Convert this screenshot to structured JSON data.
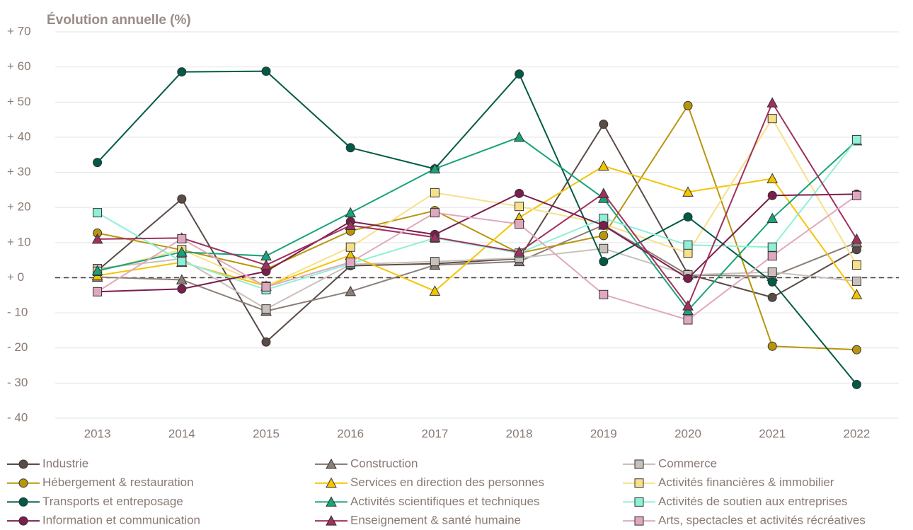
{
  "chart_data": {
    "type": "line",
    "title": "Évolution annuelle (%)",
    "categories": [
      "2013",
      "2014",
      "2015",
      "2016",
      "2017",
      "2018",
      "2019",
      "2020",
      "2021",
      "2022"
    ],
    "ylim": [
      -40,
      70
    ],
    "yticks": [
      {
        "value": -40,
        "label": "- 40"
      },
      {
        "value": -30,
        "label": "- 30"
      },
      {
        "value": -20,
        "label": "- 20"
      },
      {
        "value": -10,
        "label": "- 10"
      },
      {
        "value": 0,
        "label": "+ 0"
      },
      {
        "value": 10,
        "label": "+ 10"
      },
      {
        "value": 20,
        "label": "+ 20"
      },
      {
        "value": 30,
        "label": "+ 30"
      },
      {
        "value": 40,
        "label": "+ 40"
      },
      {
        "value": 50,
        "label": "+ 50"
      },
      {
        "value": 60,
        "label": "+ 60"
      },
      {
        "value": 70,
        "label": "+ 70"
      }
    ],
    "grid": true,
    "zero_line": true,
    "legend": "bottom",
    "series": [
      {
        "name": "Industrie",
        "color": "#5b4b46",
        "marker": "circle",
        "values": [
          2,
          22.4,
          -18.3,
          3.4,
          4,
          5.4,
          43.7,
          1,
          -5.6,
          8
        ]
      },
      {
        "name": "Construction",
        "color": "#8c7f78",
        "marker": "triangle",
        "values": [
          0.2,
          -0.6,
          -9.5,
          -3.9,
          3.6,
          4.6,
          15,
          0.8,
          0.4,
          10
        ]
      },
      {
        "name": "Commerce",
        "color": "#c9c0bb",
        "marker": "square",
        "values": [
          2.6,
          5.4,
          -8.9,
          3.8,
          4.6,
          5.6,
          8.3,
          0.8,
          1.6,
          -1
        ]
      },
      {
        "name": "Hébergement & restauration",
        "color": "#b8960c",
        "marker": "circle",
        "values": [
          12.7,
          7.9,
          2.4,
          13.3,
          19.1,
          7,
          12,
          49,
          -19.5,
          -20.5
        ]
      },
      {
        "name": "Services en direction des personnes",
        "color": "#f5c400",
        "marker": "triangle",
        "values": [
          0.6,
          4.4,
          -2.4,
          6.4,
          -3.8,
          17.1,
          31.8,
          24.4,
          28.2,
          -4.8
        ]
      },
      {
        "name": "Activités financières & immobilier",
        "color": "#f7e08a",
        "marker": "square",
        "values": [
          1.8,
          8,
          -2.4,
          8.7,
          24.2,
          20.3,
          15.3,
          7,
          45.3,
          3.6
        ]
      },
      {
        "name": "Transports et entreposage",
        "color": "#005a46",
        "marker": "circle",
        "values": [
          32.8,
          58.6,
          58.8,
          37,
          31,
          58,
          4.6,
          17.3,
          -1.2,
          -30.4
        ]
      },
      {
        "name": "Activités scientifiques et techniques",
        "color": "#1aa37a",
        "marker": "triangle",
        "values": [
          2,
          7.3,
          6.2,
          18.5,
          31,
          40,
          22.6,
          -9.3,
          16.9,
          39
        ]
      },
      {
        "name": "Activités de soutien aux entreprises",
        "color": "#8ff0d8",
        "marker": "square",
        "values": [
          18.5,
          4.6,
          -3.4,
          4,
          11.3,
          7,
          16.9,
          9.3,
          8.7,
          39.3
        ]
      },
      {
        "name": "Information et communication",
        "color": "#7b1d4d",
        "marker": "circle",
        "values": [
          -4,
          -3.2,
          1.8,
          16,
          12.3,
          24,
          14.9,
          -0.2,
          23.4,
          23.8
        ]
      },
      {
        "name": "Enseignement & santé humaine",
        "color": "#a0305e",
        "marker": "triangle",
        "values": [
          11,
          11.3,
          3.6,
          14.9,
          11.5,
          7.3,
          24,
          -8,
          49.8,
          11
        ]
      },
      {
        "name": "Arts, spectacles et activités récréatives",
        "color": "#e0a8c0",
        "marker": "square",
        "values": [
          -4,
          11.1,
          -2.6,
          4.4,
          18.5,
          15.3,
          -4.8,
          -12,
          6.2,
          23.4
        ]
      }
    ]
  }
}
